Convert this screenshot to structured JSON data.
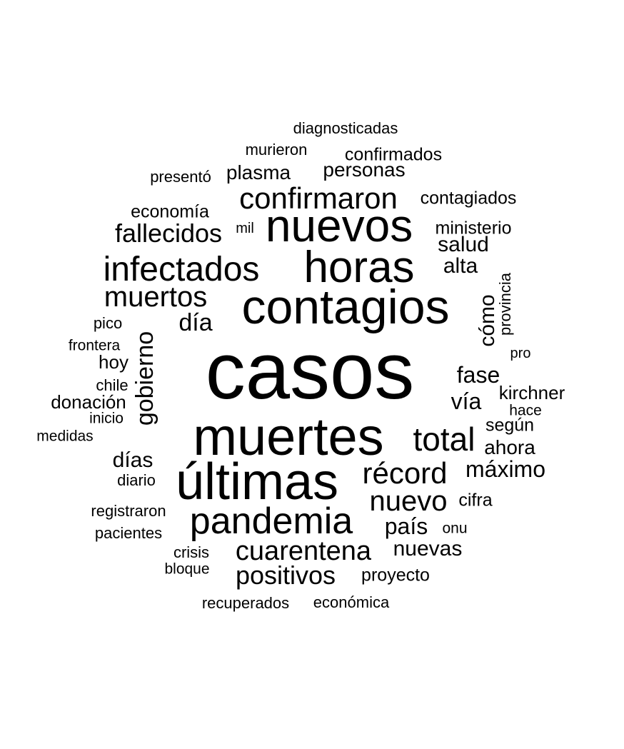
{
  "words": [
    {
      "text": "casos",
      "weight": 1.0
    },
    {
      "text": "muertes",
      "weight": 0.6
    },
    {
      "text": "últimas",
      "weight": 0.6
    },
    {
      "text": "contagios",
      "weight": 0.57
    },
    {
      "text": "nuevos",
      "weight": 0.54
    },
    {
      "text": "horas",
      "weight": 0.52
    },
    {
      "text": "pandemia",
      "weight": 0.45
    },
    {
      "text": "infectados",
      "weight": 0.42
    },
    {
      "text": "total",
      "weight": 0.4
    },
    {
      "text": "récord",
      "weight": 0.38
    },
    {
      "text": "confirmaron",
      "weight": 0.37
    },
    {
      "text": "muertos",
      "weight": 0.36
    },
    {
      "text": "nuevo",
      "weight": 0.35
    },
    {
      "text": "cuarentena",
      "weight": 0.34
    },
    {
      "text": "positivos",
      "weight": 0.33
    },
    {
      "text": "fallecidos",
      "weight": 0.33
    },
    {
      "text": "gobierno",
      "weight": 0.31
    },
    {
      "text": "máximo",
      "weight": 0.3
    },
    {
      "text": "fase",
      "weight": 0.3
    },
    {
      "text": "día",
      "weight": 0.3
    },
    {
      "text": "país",
      "weight": 0.3
    },
    {
      "text": "vía",
      "weight": 0.29
    },
    {
      "text": "días",
      "weight": 0.28
    },
    {
      "text": "cómo",
      "weight": 0.28
    },
    {
      "text": "nuevas",
      "weight": 0.27
    },
    {
      "text": "salud",
      "weight": 0.27
    },
    {
      "text": "alta",
      "weight": 0.27
    },
    {
      "text": "ahora",
      "weight": 0.26
    },
    {
      "text": "personas",
      "weight": 0.26
    },
    {
      "text": "plasma",
      "weight": 0.26
    },
    {
      "text": "hoy",
      "weight": 0.25
    },
    {
      "text": "kirchner",
      "weight": 0.25
    },
    {
      "text": "economía",
      "weight": 0.24
    },
    {
      "text": "donación",
      "weight": 0.24
    },
    {
      "text": "confirmados",
      "weight": 0.24
    },
    {
      "text": "proyecto",
      "weight": 0.24
    },
    {
      "text": "contagiados",
      "weight": 0.24
    },
    {
      "text": "ministerio",
      "weight": 0.24
    },
    {
      "text": "según",
      "weight": 0.24
    },
    {
      "text": "cifra",
      "weight": 0.24
    },
    {
      "text": "crisis",
      "weight": 0.22
    },
    {
      "text": "registraron",
      "weight": 0.22
    },
    {
      "text": "diario",
      "weight": 0.22
    },
    {
      "text": "recuperados",
      "weight": 0.22
    },
    {
      "text": "económica",
      "weight": 0.22
    },
    {
      "text": "diagnosticadas",
      "weight": 0.22
    },
    {
      "text": "murieron",
      "weight": 0.22
    },
    {
      "text": "pacientes",
      "weight": 0.22
    },
    {
      "text": "presentó",
      "weight": 0.22
    },
    {
      "text": "provincia",
      "weight": 0.22
    },
    {
      "text": "pico",
      "weight": 0.21
    },
    {
      "text": "chile",
      "weight": 0.21
    },
    {
      "text": "frontera",
      "weight": 0.2
    },
    {
      "text": "inicio",
      "weight": 0.2
    },
    {
      "text": "hace",
      "weight": 0.2
    },
    {
      "text": "onu",
      "weight": 0.2
    },
    {
      "text": "bloque",
      "weight": 0.2
    },
    {
      "text": "medidas",
      "weight": 0.2
    },
    {
      "text": "pro",
      "weight": 0.19
    },
    {
      "text": "mil",
      "weight": 0.19
    }
  ]
}
